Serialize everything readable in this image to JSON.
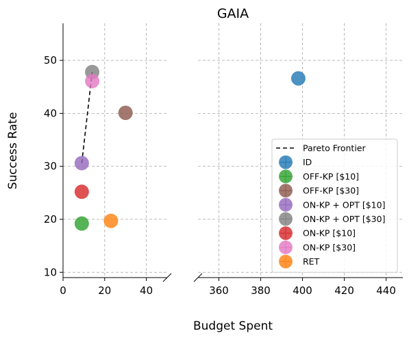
{
  "chart_data": {
    "type": "scatter",
    "title": "GAIA",
    "xlabel": "Budget Spent",
    "ylabel": "Success Rate",
    "ylim": [
      9,
      57
    ],
    "yticks": [
      10,
      20,
      30,
      40,
      50
    ],
    "grid": true,
    "broken_x_axis": true,
    "x_segments": [
      {
        "xlim": [
          0,
          50
        ],
        "xticks": [
          0,
          20,
          40
        ]
      },
      {
        "xlim": [
          350,
          448
        ],
        "xticks": [
          360,
          380,
          400,
          420,
          440
        ]
      }
    ],
    "legend_position": "lower-right",
    "pareto_frontier": {
      "label": "Pareto Frontier",
      "points": [
        [
          9,
          30.6
        ],
        [
          14,
          47.8
        ]
      ]
    },
    "series": [
      {
        "name": "ID",
        "color": "#1f77b4",
        "points": [
          [
            398,
            46.6
          ]
        ]
      },
      {
        "name": "OFF-KP [$10]",
        "color": "#2ca02c",
        "points": [
          [
            9,
            19.2
          ]
        ]
      },
      {
        "name": "OFF-KP [$30]",
        "color": "#8c564b",
        "points": [
          [
            30,
            40.1
          ]
        ]
      },
      {
        "name": "ON-KP + OPT [$10]",
        "color": "#9467bd",
        "points": [
          [
            9,
            30.6
          ]
        ]
      },
      {
        "name": "ON-KP + OPT [$30]",
        "color": "#7f7f7f",
        "points": [
          [
            14,
            47.8
          ]
        ]
      },
      {
        "name": "ON-KP [$10]",
        "color": "#d62728",
        "points": [
          [
            9,
            25.2
          ]
        ]
      },
      {
        "name": "ON-KP [$30]",
        "color": "#e377c2",
        "points": [
          [
            14,
            46.1
          ]
        ]
      },
      {
        "name": "RET",
        "color": "#ff7f0e",
        "points": [
          [
            23,
            19.7
          ]
        ]
      }
    ]
  }
}
